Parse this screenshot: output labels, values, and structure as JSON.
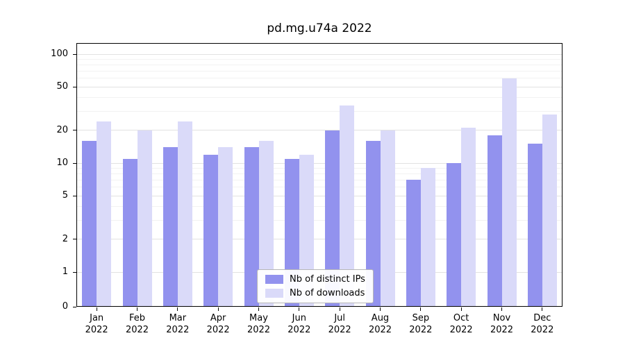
{
  "title": "pd.mg.u74a 2022",
  "chart_data": {
    "type": "bar",
    "title": "pd.mg.u74a 2022",
    "yscale": "symlog",
    "grid": true,
    "legend_position": "lower center",
    "categories": [
      "Jan",
      "Feb",
      "Mar",
      "Apr",
      "May",
      "Jun",
      "Jul",
      "Aug",
      "Sep",
      "Oct",
      "Nov",
      "Dec"
    ],
    "category_year": "2022",
    "series": [
      {
        "name": "Nb of distinct IPs",
        "color": "#9292ee",
        "values": [
          16,
          11,
          14,
          12,
          14,
          11,
          20,
          16,
          7,
          10,
          18,
          15
        ]
      },
      {
        "name": "Nb of downloads",
        "color": "#dadaf9",
        "values": [
          24,
          20,
          24,
          14,
          16,
          12,
          34,
          20,
          9,
          21,
          60,
          28
        ]
      }
    ],
    "yticks": [
      0,
      1,
      2,
      5,
      10,
      20,
      50,
      100
    ],
    "ylim": [
      0,
      126
    ]
  }
}
